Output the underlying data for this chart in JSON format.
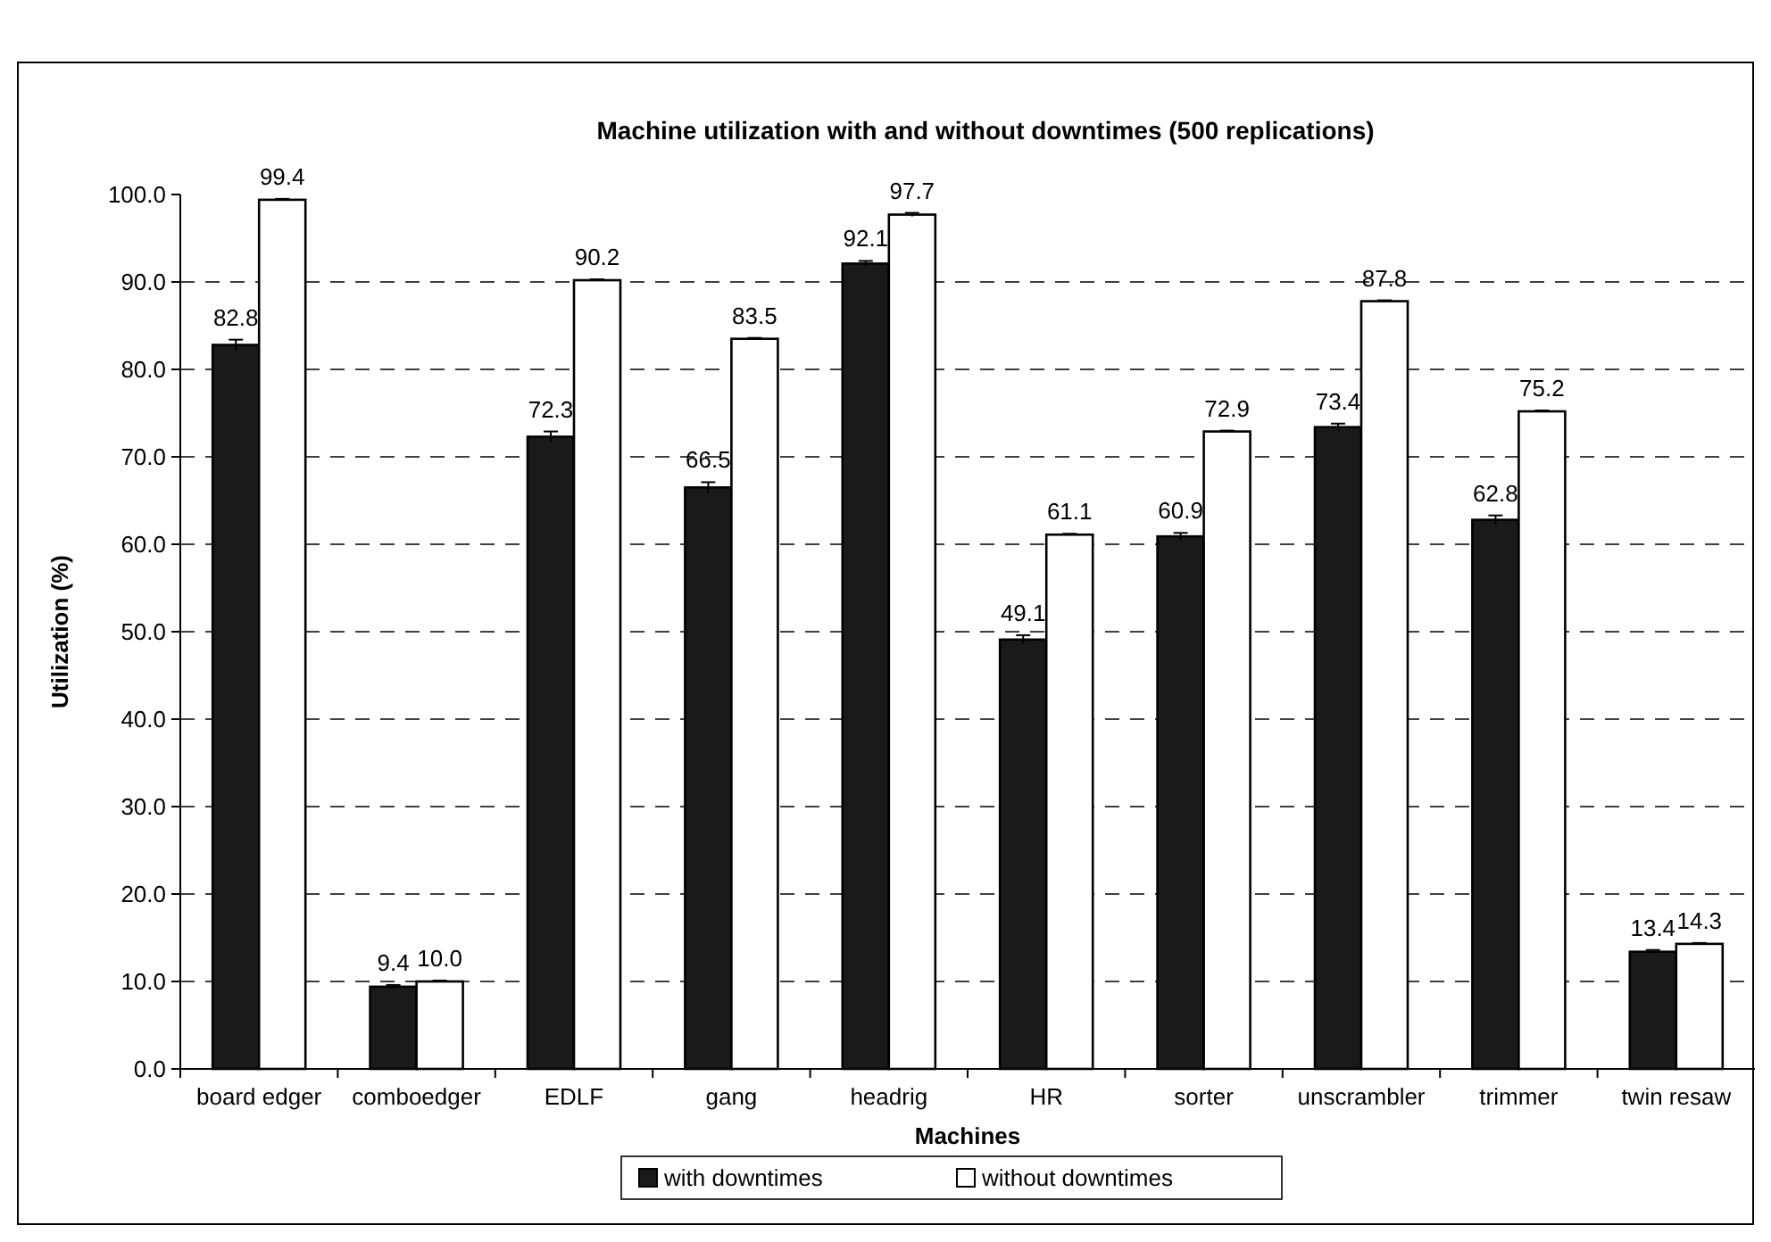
{
  "chart_data": {
    "type": "bar",
    "title": "Machine utilization with and without downtimes (500 replications)",
    "xlabel": "Machines",
    "ylabel": "Utilization (%)",
    "categories": [
      "board edger",
      "comboedger",
      "EDLF",
      "gang",
      "headrig",
      "HR",
      "sorter",
      "unscrambler",
      "trimmer",
      "twin resaw"
    ],
    "series": [
      {
        "name": "with downtimes",
        "color": "#1a1a1a",
        "values": [
          82.8,
          9.4,
          72.3,
          66.5,
          92.1,
          49.1,
          60.9,
          73.4,
          62.8,
          13.4
        ],
        "errors": [
          0.6,
          0.2,
          0.6,
          0.6,
          0.3,
          0.5,
          0.4,
          0.4,
          0.5,
          0.2
        ],
        "value_labels": [
          "82.8",
          "9.4",
          "72.3",
          "66.5",
          "92.1",
          "49.1",
          "60.9",
          "73.4",
          "62.8",
          "13.4"
        ]
      },
      {
        "name": "without downtimes",
        "color": "#ffffff",
        "values": [
          99.4,
          10.0,
          90.2,
          83.5,
          97.7,
          61.1,
          72.9,
          87.8,
          75.2,
          14.3
        ],
        "errors": [
          0.1,
          0.1,
          0.1,
          0.1,
          0.2,
          0.1,
          0.1,
          0.1,
          0.1,
          0.1
        ],
        "value_labels": [
          "99.4",
          "10.0",
          "90.2",
          "83.5",
          "97.7",
          "61.1",
          "72.9",
          "87.8",
          "75.2",
          "14.3"
        ]
      }
    ],
    "ylim": [
      0,
      100
    ],
    "yticks": [
      {
        "value": 0,
        "label": "0.0"
      },
      {
        "value": 10,
        "label": "10.0"
      },
      {
        "value": 20,
        "label": "20.0"
      },
      {
        "value": 30,
        "label": "30.0"
      },
      {
        "value": 40,
        "label": "40.0"
      },
      {
        "value": 50,
        "label": "50.0"
      },
      {
        "value": 60,
        "label": "60.0"
      },
      {
        "value": 70,
        "label": "70.0"
      },
      {
        "value": 80,
        "label": "80.0"
      },
      {
        "value": 90,
        "label": "90.0"
      },
      {
        "value": 100,
        "label": "100.0"
      }
    ],
    "grid": "y",
    "legend": "bottom"
  }
}
